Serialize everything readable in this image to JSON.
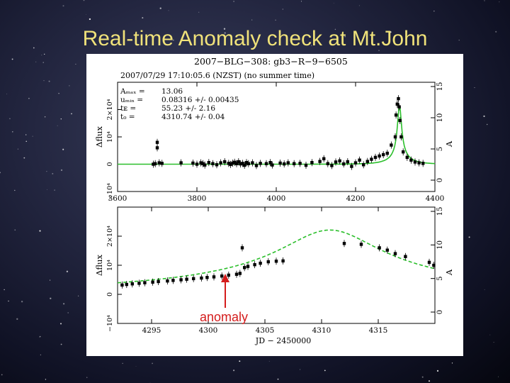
{
  "slide": {
    "title": "Real-time Anomaly check at Mt.John"
  },
  "annotation": {
    "label": "anomaly",
    "color": "#d41c1c"
  },
  "chart_data": [
    {
      "type": "scatter",
      "panel": "top",
      "title": "2007−BLG−308: gb3−R−9−6505",
      "subtitle": "2007/07/29 17:10:05.6  (NZST)  (no summer time)",
      "fit_params": [
        {
          "name": "Aₘₐₓ =",
          "value": "13.06"
        },
        {
          "name": "uₘᵢₙ =",
          "value": "0.08316 +/-  0.00435"
        },
        {
          "name": "tᴇ =",
          "value": "55.23 +/-   2.16"
        },
        {
          "name": "t₀ =",
          "value": "4310.74 +/-   0.04"
        }
      ],
      "ylabel": "Δflux",
      "ylabel_right": "A",
      "xlim": [
        3600,
        4400
      ],
      "ylim": [
        -10000,
        30000
      ],
      "x_ticks": [
        3600,
        3800,
        4000,
        4200,
        4400
      ],
      "x_tick_labels": [
        "3600",
        "3800",
        "4000",
        "4200",
        "4400"
      ],
      "y_tick_labels": [
        "−10⁴",
        "0",
        "10⁴",
        "2×10⁴"
      ],
      "y_ticks": [
        -10000,
        0,
        10000,
        20000
      ],
      "right_tick_labels": [
        "0",
        "5",
        "10",
        "15"
      ],
      "data_x": [
        3690,
        3695,
        3700,
        3700,
        3705,
        3712,
        3760,
        3790,
        3800,
        3810,
        3815,
        3820,
        3830,
        3840,
        3850,
        3860,
        3870,
        3880,
        3885,
        3890,
        3895,
        3900,
        3905,
        3910,
        3915,
        3920,
        3925,
        3930,
        3940,
        3950,
        3960,
        3975,
        3985,
        3990,
        4010,
        4020,
        4030,
        4045,
        4060,
        4075,
        4090,
        4110,
        4120,
        4130,
        4140,
        4150,
        4160,
        4170,
        4180,
        4190,
        4200,
        4210,
        4220,
        4230,
        4240,
        4250,
        4260,
        4270,
        4280,
        4290,
        4300,
        4302,
        4305,
        4308,
        4310,
        4312,
        4315,
        4320,
        4330,
        4340,
        4350,
        4360,
        4370
      ],
      "data_y": [
        0,
        200,
        8000,
        6000,
        500,
        300,
        500,
        400,
        0,
        500,
        200,
        -300,
        600,
        200,
        -200,
        500,
        900,
        300,
        -100,
        400,
        700,
        200,
        900,
        100,
        300,
        -400,
        600,
        200,
        500,
        -500,
        300,
        200,
        600,
        -300,
        400,
        100,
        500,
        200,
        300,
        -400,
        600,
        1000,
        2000,
        200,
        -500,
        800,
        1200,
        100,
        900,
        -800,
        500,
        1500,
        -200,
        1000,
        1800,
        2500,
        3000,
        3500,
        4000,
        7000,
        10000,
        18000,
        22000,
        24000,
        21000,
        16000,
        10000,
        4500,
        2500,
        1500,
        800,
        500,
        300
      ]
    },
    {
      "type": "scatter",
      "panel": "bottom",
      "ylabel": "Δflux",
      "ylabel_right": "A",
      "xlabel": "JD − 2450000",
      "xlim": [
        4292,
        4320
      ],
      "ylim": [
        -10000,
        30000
      ],
      "x_ticks": [
        4295,
        4300,
        4305,
        4310,
        4315
      ],
      "x_tick_labels": [
        "4295",
        "4300",
        "4305",
        "4310",
        "4315"
      ],
      "y_tick_labels": [
        "−10⁴",
        "0",
        "10⁴",
        "2×10⁴"
      ],
      "y_ticks": [
        -10000,
        0,
        10000,
        20000
      ],
      "right_tick_labels": [
        "0",
        "5",
        "10",
        "15"
      ],
      "data_x": [
        4292.4,
        4292.8,
        4293.3,
        4293.9,
        4294.4,
        4295.1,
        4295.6,
        4296.4,
        4296.9,
        4297.6,
        4298.1,
        4298.7,
        4299.4,
        4299.9,
        4300.5,
        4301.2,
        4301.8,
        4302.5,
        4302.8,
        4303.0,
        4303.2,
        4303.5,
        4304.1,
        4304.6,
        4305.3,
        4306.0,
        4306.6,
        4312.0,
        4313.5,
        4315.1,
        4315.8,
        4316.5,
        4317.4,
        4319.5,
        4319.9
      ],
      "data_y": [
        3200,
        3400,
        3600,
        3800,
        4000,
        4200,
        4400,
        4600,
        4800,
        5000,
        5200,
        5400,
        5600,
        5800,
        6000,
        6300,
        6600,
        6900,
        7200,
        16000,
        9200,
        9600,
        10200,
        10700,
        11200,
        11400,
        11500,
        17500,
        17200,
        16000,
        15200,
        14000,
        13000,
        11000,
        10000
      ]
    }
  ]
}
